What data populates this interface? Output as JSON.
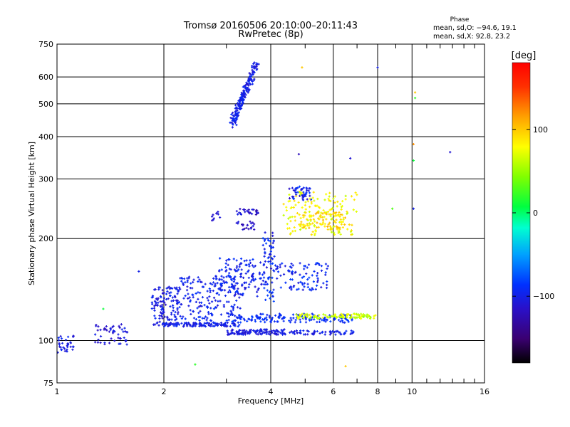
{
  "header": {
    "title_line1": "Tromsø 20160506 20:10:00–20:11:43",
    "title_line2": "RwPretec (8p)"
  },
  "phase_box": {
    "heading": "Phase",
    "line1": "mean, sd,O: −94.6, 19.1",
    "line2": "mean, sd,X:  92.8, 23.2"
  },
  "colorbar": {
    "unit_label": "[deg]",
    "ticks": [
      {
        "value": 100,
        "label": "100"
      },
      {
        "value": 0,
        "label": "0"
      },
      {
        "value": -100,
        "label": "−100"
      }
    ],
    "range": [
      -180,
      180
    ]
  },
  "chart_data": {
    "type": "scatter",
    "xlabel": "Frequency [MHz]",
    "ylabel": "Stationary phase Virtual Height [km]",
    "xscale": "log",
    "yscale": "log",
    "xlim": [
      1,
      16
    ],
    "ylim": [
      75,
      750
    ],
    "xticks": [
      {
        "value": 1,
        "label": "1"
      },
      {
        "value": 2,
        "label": "2"
      },
      {
        "value": 4,
        "label": "4"
      },
      {
        "value": 6,
        "label": "6"
      },
      {
        "value": 8,
        "label": "8"
      },
      {
        "value": 10,
        "label": "10"
      },
      {
        "value": 16,
        "label": "16"
      }
    ],
    "xgrid": [
      2,
      4,
      6,
      8,
      10
    ],
    "xminor": [
      3,
      5,
      7,
      9,
      11,
      12,
      13,
      14,
      15
    ],
    "yticks": [
      {
        "value": 750,
        "label": "750"
      },
      {
        "value": 600,
        "label": "600"
      },
      {
        "value": 500,
        "label": "500"
      },
      {
        "value": 400,
        "label": "400"
      },
      {
        "value": 300,
        "label": "300"
      },
      {
        "value": 200,
        "label": "200"
      },
      {
        "value": 100,
        "label": "100"
      },
      {
        "value": 75,
        "label": "75"
      }
    ],
    "ygrid": [
      600,
      500,
      400,
      300,
      200,
      100
    ],
    "color_value": "phase [deg]",
    "clusters": [
      {
        "f": [
          1.0,
          1.12
        ],
        "h": [
          92,
          104
        ],
        "phase": [
          -115,
          -90
        ],
        "n": 35
      },
      {
        "f": [
          1.28,
          1.6
        ],
        "h": [
          97,
          112
        ],
        "phase": [
          -120,
          -95
        ],
        "n": 50
      },
      {
        "f": [
          1.85,
          2.2
        ],
        "h": [
          110,
          145
        ],
        "phase": [
          -115,
          -90
        ],
        "n": 130
      },
      {
        "f": [
          2.2,
          3.3
        ],
        "h": [
          110,
          155
        ],
        "phase": [
          -110,
          -85
        ],
        "n": 200
      },
      {
        "f": [
          2.0,
          3.2
        ],
        "h": [
          110,
          113
        ],
        "phase": [
          -110,
          -90
        ],
        "n": 90
      },
      {
        "f": [
          2.8,
          3.8
        ],
        "h": [
          135,
          175
        ],
        "phase": [
          -110,
          -85
        ],
        "n": 120
      },
      {
        "f": [
          3.0,
          4.4
        ],
        "h": [
          104,
          108
        ],
        "phase": [
          -115,
          -95
        ],
        "n": 110
      },
      {
        "f": [
          3.0,
          6.8
        ],
        "h": [
          113,
          120
        ],
        "phase": [
          -100,
          -80
        ],
        "n": 160
      },
      {
        "f": [
          3.8,
          4.1
        ],
        "h": [
          130,
          210
        ],
        "phase": [
          -110,
          -80
        ],
        "n": 70
      },
      {
        "f": [
          4.1,
          5.8
        ],
        "h": [
          140,
          170
        ],
        "phase": [
          -110,
          -80
        ],
        "n": 90
      },
      {
        "f": [
          4.7,
          7.9
        ],
        "h": [
          116,
          120
        ],
        "phase": [
          50,
          80
        ],
        "n": 100
      },
      {
        "f": [
          4.5,
          5.2
        ],
        "h": [
          260,
          285
        ],
        "phase": [
          -120,
          -80
        ],
        "n": 50
      },
      {
        "f": [
          4.3,
          7.0
        ],
        "h": [
          205,
          275
        ],
        "phase": [
          60,
          95
        ],
        "n": 160
      },
      {
        "f": [
          4.8,
          6.5
        ],
        "h": [
          215,
          240
        ],
        "phase": [
          80,
          110
        ],
        "n": 70
      },
      {
        "f": [
          3.2,
          3.7
        ],
        "h": [
          235,
          245
        ],
        "phase": [
          -130,
          -100
        ],
        "n": 25
      },
      {
        "f": [
          3.2,
          3.6
        ],
        "h": [
          212,
          225
        ],
        "phase": [
          -130,
          -100
        ],
        "n": 20
      },
      {
        "f": [
          4.5,
          6.9
        ],
        "h": [
          104,
          107
        ],
        "phase": [
          -110,
          -90
        ],
        "n": 60
      },
      {
        "f": [
          2.7,
          2.9
        ],
        "h": [
          225,
          240
        ],
        "phase": [
          -120,
          -100
        ],
        "n": 10
      }
    ],
    "line_traces": [
      {
        "from": [
          3.1,
          440
        ],
        "to": [
          3.65,
          660
        ],
        "phase": [
          -115,
          -85
        ],
        "n": 140
      },
      {
        "from": [
          3.15,
          435
        ],
        "to": [
          3.55,
          600
        ],
        "phase": [
          -110,
          -90
        ],
        "n": 60
      }
    ],
    "isolated_points": [
      {
        "f": 4.9,
        "h": 640,
        "phase": 100
      },
      {
        "f": 8.0,
        "h": 640,
        "phase": -100
      },
      {
        "f": 10.2,
        "h": 540,
        "phase": 100
      },
      {
        "f": 10.2,
        "h": 520,
        "phase": 20
      },
      {
        "f": 12.8,
        "h": 360,
        "phase": -110
      },
      {
        "f": 10.1,
        "h": 380,
        "phase": 120
      },
      {
        "f": 10.1,
        "h": 340,
        "phase": 10
      },
      {
        "f": 10.1,
        "h": 245,
        "phase": -100
      },
      {
        "f": 8.8,
        "h": 245,
        "phase": 30
      },
      {
        "f": 4.8,
        "h": 355,
        "phase": -120
      },
      {
        "f": 6.7,
        "h": 345,
        "phase": -110
      },
      {
        "f": 1.7,
        "h": 160,
        "phase": -100
      },
      {
        "f": 2.45,
        "h": 85,
        "phase": 20
      },
      {
        "f": 6.5,
        "h": 84,
        "phase": 100
      },
      {
        "f": 1.35,
        "h": 124,
        "phase": 10
      }
    ]
  }
}
